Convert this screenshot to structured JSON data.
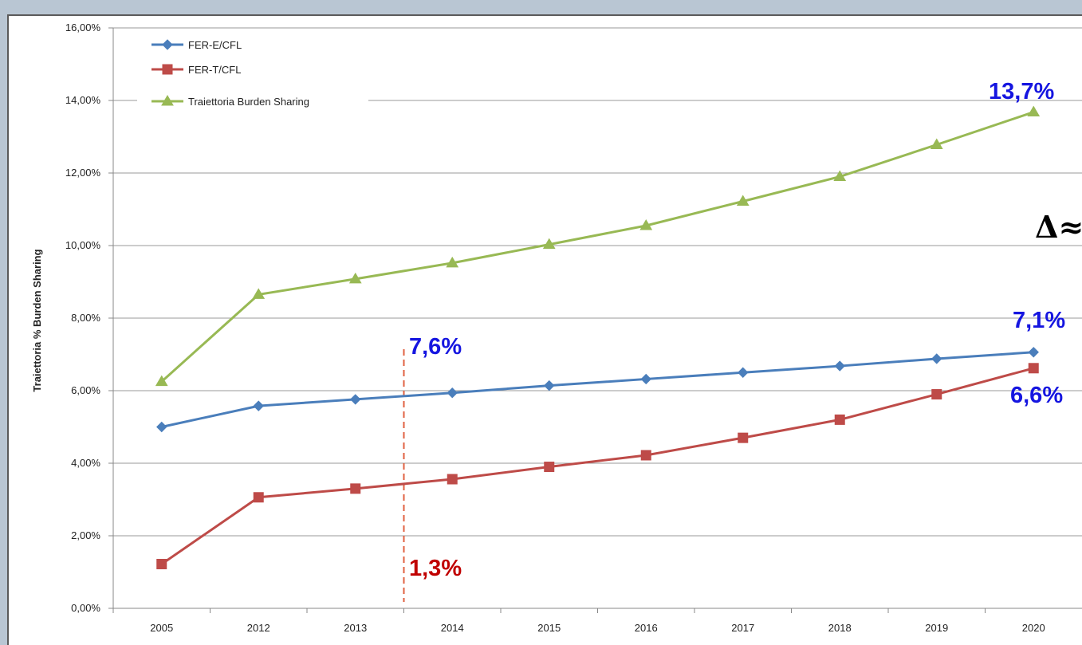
{
  "colors": {
    "fer_e": "#4a7ebb",
    "fer_t": "#be4b48",
    "burden": "#98b954",
    "annot_blue": "#1515e0",
    "annot_red": "#c00000",
    "divider": "#e06040"
  },
  "chart_data": {
    "type": "line",
    "ylabel": "Traiettoria % Burden Sharing",
    "xlabel": "",
    "categories": [
      "2005",
      "2012",
      "2013",
      "2014",
      "2015",
      "2016",
      "2017",
      "2018",
      "2019",
      "2020"
    ],
    "ylim": [
      0,
      16
    ],
    "yticks": [
      0,
      2,
      4,
      6,
      8,
      10,
      12,
      14,
      16
    ],
    "ytick_labels": [
      "0,00%",
      "2,00%",
      "4,00%",
      "6,00%",
      "8,00%",
      "10,00%",
      "12,00%",
      "14,00%",
      "16,00%"
    ],
    "grid": "horizontal",
    "legend_position": "top-left",
    "series": [
      {
        "name": "FER-E/CFL",
        "marker": "diamond",
        "values": [
          5.0,
          5.58,
          5.76,
          5.94,
          6.14,
          6.32,
          6.5,
          6.68,
          6.88,
          7.06
        ]
      },
      {
        "name": "FER-T/CFL",
        "marker": "square",
        "values": [
          1.22,
          3.06,
          3.3,
          3.56,
          3.9,
          4.22,
          4.7,
          5.2,
          5.9,
          6.62
        ]
      },
      {
        "name": "Traiettoria Burden Sharing",
        "marker": "triangle",
        "values": [
          6.25,
          8.65,
          9.08,
          9.52,
          10.03,
          10.55,
          11.22,
          11.9,
          12.78,
          13.68
        ]
      }
    ],
    "annotations": [
      {
        "text": "13,7%",
        "color": "blue"
      },
      {
        "text": "Δ≈",
        "color": "black"
      },
      {
        "text": "7,1%",
        "color": "blue"
      },
      {
        "text": "6,6%",
        "color": "blue"
      },
      {
        "text": "7,6%",
        "color": "blue"
      },
      {
        "text": "1,3%",
        "color": "red"
      }
    ]
  }
}
